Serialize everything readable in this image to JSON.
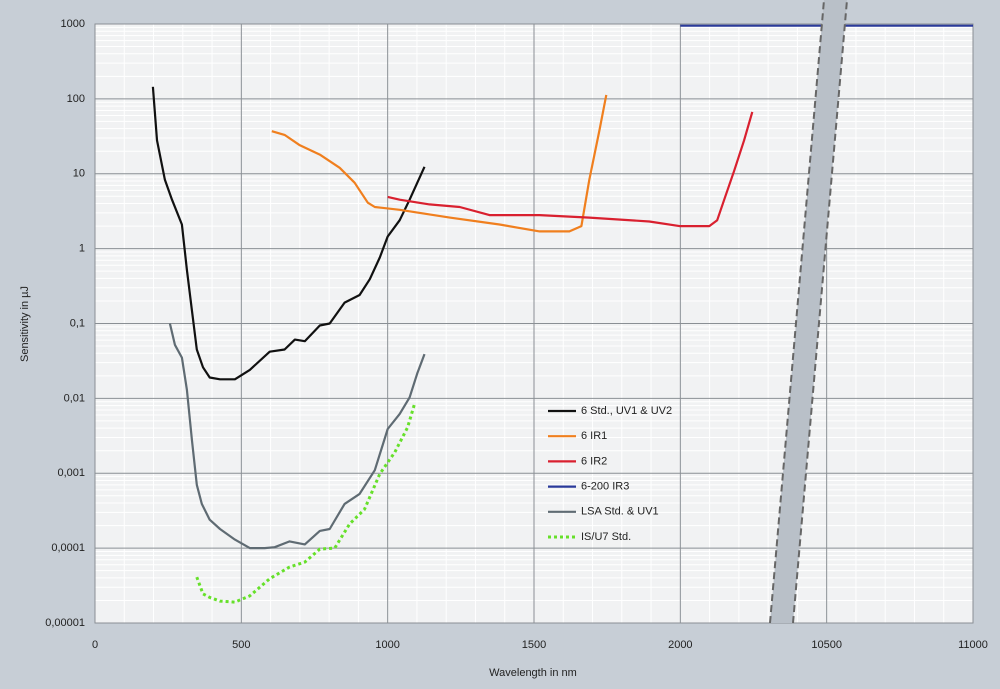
{
  "chart_data": {
    "type": "line",
    "y_label": "Sensitivity in µJ",
    "x_label": "Wavelength in nm",
    "y_scale": "log",
    "grid": true,
    "xlim": [
      0,
      11000
    ],
    "xticks": [
      0,
      500,
      1000,
      1500,
      2000,
      10500,
      11000
    ],
    "ylim": [
      1e-05,
      1000
    ],
    "yticks": [
      {
        "value": 1e-05,
        "label": "0,00001"
      },
      {
        "value": 0.0001,
        "label": "0,0001"
      },
      {
        "value": 0.001,
        "label": "0,001"
      },
      {
        "value": 0.01,
        "label": "0,01"
      },
      {
        "value": 0.1,
        "label": "0,1"
      },
      1,
      10,
      100,
      1000
    ],
    "series": [
      {
        "name": "6 Std., UV1 & UV2",
        "color": "#111111",
        "style": "solid",
        "x": [
          198,
          212,
          239,
          263,
          297,
          314,
          331,
          348,
          369,
          392,
          427,
          478,
          529,
          597,
          648,
          683,
          717,
          768,
          802,
          853,
          904,
          939,
          973,
          1000,
          1041,
          1075,
          1126
        ],
        "values": [
          145,
          28,
          8.3,
          4.5,
          2.1,
          0.52,
          0.15,
          0.045,
          0.026,
          0.019,
          0.018,
          0.018,
          0.024,
          0.042,
          0.045,
          0.061,
          0.058,
          0.094,
          0.1,
          0.19,
          0.24,
          0.39,
          0.76,
          1.45,
          2.4,
          4.5,
          12.4
        ]
      },
      {
        "name": "6 IR1",
        "color": "#f07f1e",
        "style": "solid",
        "x": [
          604,
          648,
          700,
          768,
          836,
          887,
          932,
          956,
          1041,
          1212,
          1382,
          1519,
          1621,
          1662,
          1689,
          1724,
          1747
        ],
        "values": [
          37,
          33,
          24,
          18,
          12,
          7.6,
          4.1,
          3.6,
          3.3,
          2.6,
          2.1,
          1.7,
          1.7,
          2.0,
          8.3,
          39,
          113
        ]
      },
      {
        "name": "6 IR2",
        "color": "#d9202f",
        "style": "solid",
        "x": [
          1000,
          1041,
          1143,
          1246,
          1348,
          1519,
          1689,
          1894,
          1997,
          2099,
          2126,
          2150,
          2184,
          2218,
          2246
        ],
        "values": [
          4.9,
          4.5,
          3.9,
          3.6,
          2.8,
          2.8,
          2.6,
          2.3,
          2.0,
          2.0,
          2.4,
          4.5,
          11,
          28,
          67
        ]
      },
      {
        "name": "6-200 IR3",
        "color": "#2a3a9a",
        "style": "solid",
        "x": [
          2000,
          11000
        ],
        "values": [
          950,
          950
        ]
      },
      {
        "name": "LSA Std. & UV1",
        "color": "#5f6b73",
        "style": "solid",
        "x": [
          256,
          273,
          297,
          314,
          331,
          348,
          365,
          392,
          427,
          478,
          529,
          580,
          614,
          665,
          717,
          768,
          802,
          853,
          904,
          956,
          1000,
          1041,
          1075,
          1102,
          1126
        ],
        "values": [
          0.1,
          0.052,
          0.035,
          0.013,
          0.0028,
          0.0007,
          0.00039,
          0.00024,
          0.00018,
          0.00013,
          0.0001,
          0.0001,
          0.000103,
          0.000123,
          0.000112,
          0.00017,
          0.00018,
          0.00039,
          0.00053,
          0.0011,
          0.0039,
          0.0062,
          0.0103,
          0.022,
          0.039
        ]
      },
      {
        "name": "IS/U7  Std.",
        "color": "#66e02a",
        "style": "dotted",
        "x": [
          348,
          369,
          392,
          427,
          478,
          529,
          597,
          665,
          717,
          768,
          819,
          870,
          921,
          973,
          1024,
          1068,
          1092
        ],
        "values": [
          4.1e-05,
          2.45e-05,
          2.2e-05,
          1.96e-05,
          1.9e-05,
          2.3e-05,
          3.9e-05,
          5.6e-05,
          6.5e-05,
          9.7e-05,
          0.0001,
          0.00021,
          0.00033,
          0.00098,
          0.0019,
          0.0041,
          0.0085
        ]
      }
    ]
  }
}
